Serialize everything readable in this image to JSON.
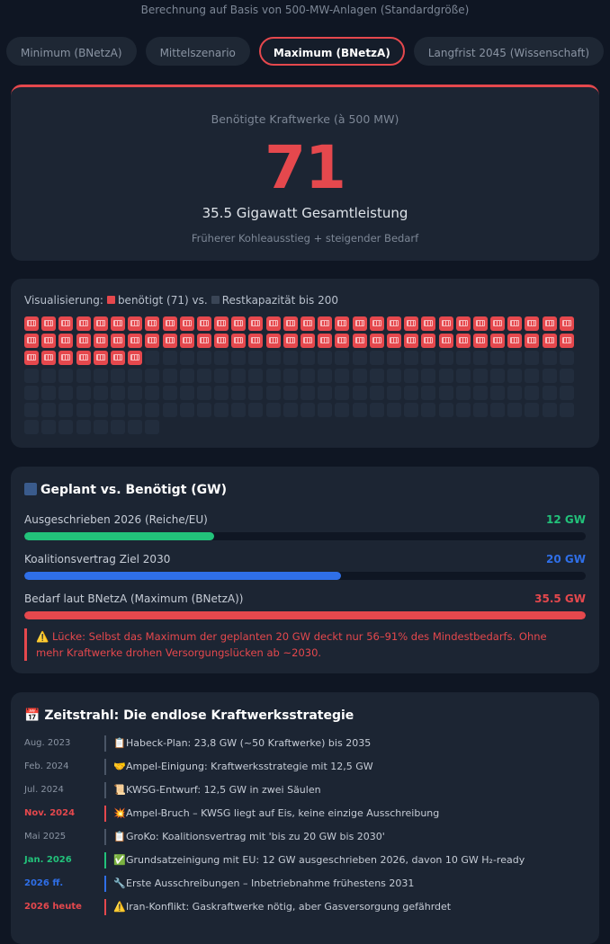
{
  "subtitle": "Berechnung auf Basis von 500-MW-Anlagen (Standardgröße)",
  "tabs": [
    {
      "label": "Minimum (BNetzA)",
      "active": false
    },
    {
      "label": "Mittelszenario",
      "active": false
    },
    {
      "label": "Maximum (BNetzA)",
      "active": true
    },
    {
      "label": "Langfrist 2045 (Wissenschaft)",
      "active": false
    }
  ],
  "result": {
    "label": "Benötigte Kraftwerke (à 500 MW)",
    "count": "71",
    "capacity": "35.5 Gigawatt Gesamtleistung",
    "note": "Früherer Kohleausstieg + steigender Bedarf"
  },
  "visualization": {
    "prefix": "Visualisierung:",
    "needed_label": "benötigt (71) vs.",
    "rest_label": "Restkapazität bis 200",
    "needed": 71,
    "total": 200
  },
  "comparison": {
    "title": "Geplant vs. Benötigt (GW)",
    "max_gw": 35.5,
    "rows": [
      {
        "name": "Ausgeschrieben 2026 (Reiche/EU)",
        "value_label": "12 GW",
        "gw": 12,
        "color": "#22c27a"
      },
      {
        "name": "Koalitionsvertrag Ziel 2030",
        "value_label": "20 GW",
        "gw": 20,
        "color": "#2f6fe8"
      },
      {
        "name": "Bedarf laut BNetzA (Maximum (BNetzA))",
        "value_label": "35.5 GW",
        "gw": 35.5,
        "color": "#e5484d"
      }
    ],
    "warning": "Lücke: Selbst das Maximum der geplanten 20 GW deckt nur 56–91% des Mindestbedarfs. Ohne mehr Kraftwerke drohen Versorgungslücken ab ~2030."
  },
  "timeline": {
    "title": "Zeitstrahl: Die endlose Kraftwerksstrategie",
    "items": [
      {
        "date": "Aug. 2023",
        "icon": "📋",
        "text": "Habeck-Plan: 23,8 GW (~50 Kraftwerke) bis 2035",
        "color": "#8a94a3",
        "bar": "#4a5566",
        "bold": false
      },
      {
        "date": "Feb. 2024",
        "icon": "🤝",
        "text": "Ampel-Einigung: Kraftwerksstrategie mit 12,5 GW",
        "color": "#8a94a3",
        "bar": "#4a5566",
        "bold": false
      },
      {
        "date": "Jul. 2024",
        "icon": "📜",
        "text": "KWSG-Entwurf: 12,5 GW in zwei Säulen",
        "color": "#8a94a3",
        "bar": "#4a5566",
        "bold": false
      },
      {
        "date": "Nov. 2024",
        "icon": "💥",
        "text": "Ampel-Bruch – KWSG liegt auf Eis, keine einzige Ausschreibung",
        "color": "#e5484d",
        "bar": "#e5484d",
        "bold": true
      },
      {
        "date": "Mai 2025",
        "icon": "📋",
        "text": "GroKo: Koalitionsvertrag mit 'bis zu 20 GW bis 2030'",
        "color": "#8a94a3",
        "bar": "#4a5566",
        "bold": false
      },
      {
        "date": "Jan. 2026",
        "icon": "✅",
        "text": "Grundsatzeinigung mit EU: 12 GW ausgeschrieben 2026, davon 10 GW H₂-ready",
        "color": "#22c27a",
        "bar": "#22c27a",
        "bold": true
      },
      {
        "date": "2026 ff.",
        "icon": "🔧",
        "text": "Erste Ausschreibungen – Inbetriebnahme frühestens 2031",
        "color": "#2f6fe8",
        "bar": "#2f6fe8",
        "bold": true
      },
      {
        "date": "2026 heute",
        "icon": "⚠️",
        "text": "Iran-Konflikt: Gaskraftwerke nötig, aber Gasversorgung gefährdet",
        "color": "#e5484d",
        "bar": "#e5484d",
        "bold": true
      }
    ]
  },
  "colors": {
    "accent": "#e5484d",
    "green": "#22c27a",
    "blue": "#2f6fe8"
  }
}
